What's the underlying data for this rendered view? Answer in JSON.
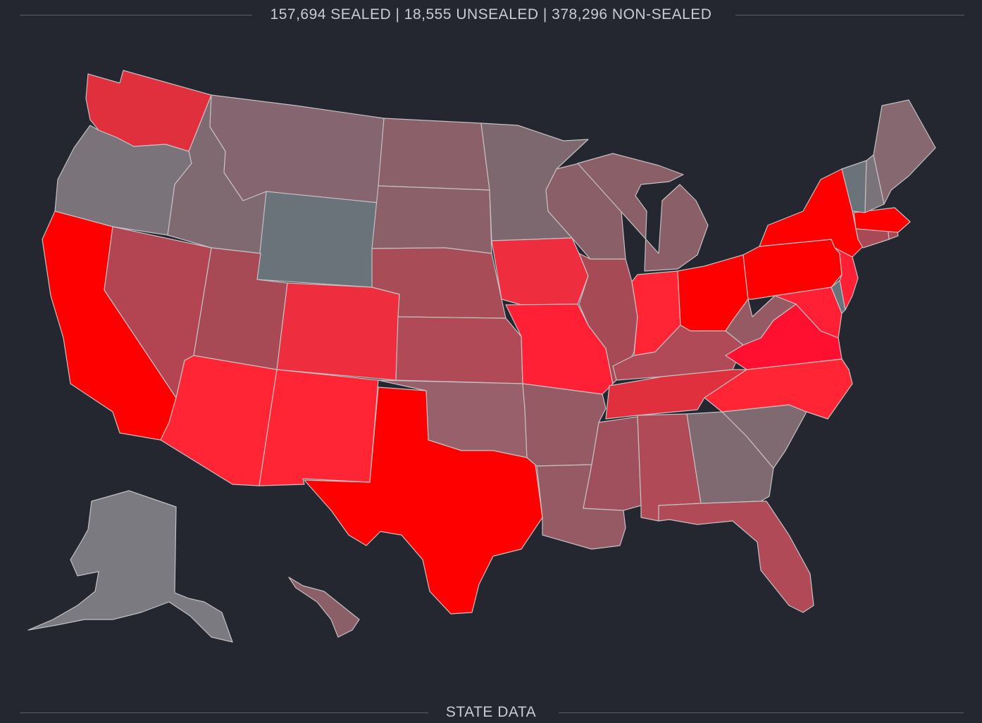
{
  "header": {
    "summary": "157,694 SEALED | 18,555 UNSEALED | 378,296 NON-SEALED"
  },
  "footer": {
    "section_title": "STATE DATA"
  },
  "legend_colors": {
    "background": "#24272f",
    "highest": "#ff0000",
    "high": "#ff2030",
    "medium": "#b04a58",
    "low": "#8a6670",
    "none": "#6a737a"
  },
  "states": [
    {
      "code": "WA",
      "fill": "#e0303e"
    },
    {
      "code": "OR",
      "fill": "#7a737a"
    },
    {
      "code": "CA",
      "fill": "#ff0000"
    },
    {
      "code": "ID",
      "fill": "#7f6a72"
    },
    {
      "code": "NV",
      "fill": "#b34552"
    },
    {
      "code": "MT",
      "fill": "#856570"
    },
    {
      "code": "WY",
      "fill": "#6a737a"
    },
    {
      "code": "UT",
      "fill": "#a84a56"
    },
    {
      "code": "AZ",
      "fill": "#ff2535"
    },
    {
      "code": "CO",
      "fill": "#ee2e3e"
    },
    {
      "code": "NM",
      "fill": "#ff2535"
    },
    {
      "code": "ND",
      "fill": "#8c6068"
    },
    {
      "code": "SD",
      "fill": "#8c6068"
    },
    {
      "code": "NE",
      "fill": "#a84d58"
    },
    {
      "code": "KS",
      "fill": "#b04a56"
    },
    {
      "code": "OK",
      "fill": "#98606a"
    },
    {
      "code": "TX",
      "fill": "#ff0000"
    },
    {
      "code": "MN",
      "fill": "#7d6870"
    },
    {
      "code": "IA",
      "fill": "#ee2e3e"
    },
    {
      "code": "MO",
      "fill": "#ff2035"
    },
    {
      "code": "AR",
      "fill": "#955a64"
    },
    {
      "code": "LA",
      "fill": "#955a64"
    },
    {
      "code": "WI",
      "fill": "#8a5f68"
    },
    {
      "code": "IL",
      "fill": "#a64a56"
    },
    {
      "code": "MI",
      "fill": "#8a5f68"
    },
    {
      "code": "IN",
      "fill": "#ff2535"
    },
    {
      "code": "OH",
      "fill": "#ff0000"
    },
    {
      "code": "KY",
      "fill": "#b04a56"
    },
    {
      "code": "TN",
      "fill": "#e0303e"
    },
    {
      "code": "MS",
      "fill": "#a0505c"
    },
    {
      "code": "AL",
      "fill": "#b04a56"
    },
    {
      "code": "GA",
      "fill": "#806a72"
    },
    {
      "code": "FL",
      "fill": "#b04a56"
    },
    {
      "code": "SC",
      "fill": "#806a72"
    },
    {
      "code": "NC",
      "fill": "#ff2535"
    },
    {
      "code": "VA",
      "fill": "#ff1030"
    },
    {
      "code": "WV",
      "fill": "#955a64"
    },
    {
      "code": "PA",
      "fill": "#ff0000"
    },
    {
      "code": "NY",
      "fill": "#ff0000"
    },
    {
      "code": "NJ",
      "fill": "#ff2035"
    },
    {
      "code": "MD",
      "fill": "#ff2035"
    },
    {
      "code": "DE",
      "fill": "#6a737a"
    },
    {
      "code": "CT",
      "fill": "#a84a56"
    },
    {
      "code": "RI",
      "fill": "#a84a56"
    },
    {
      "code": "MA",
      "fill": "#ff0000"
    },
    {
      "code": "VT",
      "fill": "#6a737a"
    },
    {
      "code": "NH",
      "fill": "#7a737a"
    },
    {
      "code": "ME",
      "fill": "#856870"
    },
    {
      "code": "AK",
      "fill": "#7a7a80"
    },
    {
      "code": "HI",
      "fill": "#8a5f68"
    }
  ]
}
